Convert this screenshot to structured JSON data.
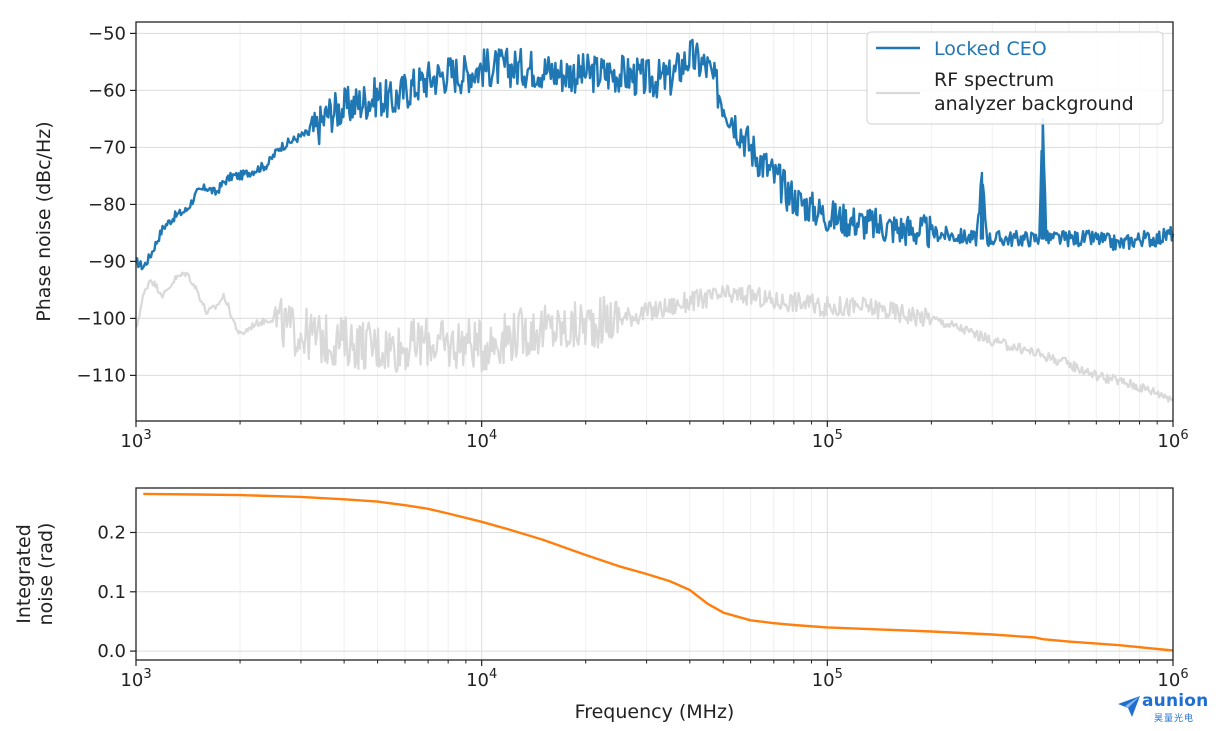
{
  "chart_data": [
    {
      "type": "line",
      "ylabel": "Phase noise (dBc/Hz)",
      "xlabel": "",
      "xscale": "log",
      "xlim": [
        1000,
        1000000
      ],
      "ylim": [
        -118,
        -48
      ],
      "yticks": [
        -50,
        -60,
        -70,
        -80,
        -90,
        -100,
        -110
      ],
      "ytick_labels": [
        "−50",
        "−60",
        "−70",
        "−80",
        "−90",
        "−100",
        "−110"
      ],
      "xtick_labels": [
        {
          "base": "10",
          "exp": "3"
        },
        {
          "base": "10",
          "exp": "4"
        },
        {
          "base": "10",
          "exp": "5"
        },
        {
          "base": "10",
          "exp": "6"
        }
      ],
      "grid": true,
      "legend_position": "top-right",
      "series": [
        {
          "name": "Locked CEO",
          "color": "#1f77b4",
          "x": [
            1000,
            1050,
            1100,
            1200,
            1300,
            1400,
            1500,
            1600,
            1700,
            1800,
            1900,
            2000,
            2200,
            2400,
            2600,
            2800,
            3000,
            3300,
            3600,
            4000,
            4500,
            5000,
            5500,
            6000,
            7000,
            8000,
            9000,
            10000,
            12000,
            14000,
            17000,
            20000,
            25000,
            30000,
            35000,
            40000,
            45000,
            50000,
            60000,
            70000,
            80000,
            100000,
            120000,
            150000,
            200000,
            270000,
            280000,
            290000,
            350000,
            410000,
            420000,
            430000,
            500000,
            600000,
            700000,
            800000,
            900000,
            1000000
          ],
          "y": [
            -90,
            -91,
            -89,
            -84,
            -82,
            -81,
            -78,
            -77,
            -78,
            -76,
            -75,
            -75,
            -74,
            -73,
            -70,
            -69,
            -68,
            -67,
            -64,
            -63,
            -62,
            -61,
            -62,
            -60,
            -58,
            -57,
            -57,
            -56,
            -56,
            -56,
            -57,
            -57,
            -57,
            -58,
            -58,
            -54,
            -56,
            -62,
            -70,
            -75,
            -79,
            -82,
            -83,
            -84,
            -85,
            -86,
            -75,
            -86,
            -86,
            -86,
            -65,
            -86,
            -86,
            -86,
            -87,
            -86,
            -86,
            -85
          ]
        },
        {
          "name": "RF spectrum\nanalyzer background",
          "color": "#d9d9d9",
          "x": [
            1000,
            1050,
            1100,
            1200,
            1300,
            1400,
            1500,
            1600,
            1700,
            1800,
            1900,
            2000,
            2200,
            2500,
            2800,
            3200,
            3600,
            4000,
            5000,
            6000,
            7000,
            8000,
            9000,
            10000,
            12000,
            15000,
            18000,
            20000,
            25000,
            30000,
            35000,
            40000,
            50000,
            60000,
            70000,
            80000,
            100000,
            130000,
            160000,
            200000,
            250000,
            300000,
            400000,
            500000,
            600000,
            700000,
            800000,
            900000,
            1000000
          ],
          "y": [
            -102,
            -96,
            -93,
            -96,
            -93,
            -92,
            -95,
            -99,
            -98,
            -96,
            -100,
            -103,
            -101,
            -100,
            -102,
            -103,
            -104,
            -104,
            -105,
            -105,
            -104,
            -105,
            -104,
            -105,
            -103,
            -102,
            -102,
            -101,
            -100,
            -99,
            -98,
            -97,
            -96,
            -96,
            -97,
            -97,
            -98,
            -98,
            -99,
            -100,
            -102,
            -104,
            -106,
            -108,
            -110,
            -111,
            -112,
            -113,
            -114
          ]
        }
      ]
    },
    {
      "type": "line",
      "ylabel": "Integrated\nnoise (rad)",
      "xlabel": "Frequency (MHz)",
      "xscale": "log",
      "xlim": [
        1000,
        1000000
      ],
      "ylim": [
        -0.015,
        0.275
      ],
      "yticks": [
        0.0,
        0.1,
        0.2
      ],
      "ytick_labels": [
        "0.0",
        "0.1",
        "0.2"
      ],
      "xtick_labels": [
        {
          "base": "10",
          "exp": "3"
        },
        {
          "base": "10",
          "exp": "4"
        },
        {
          "base": "10",
          "exp": "5"
        },
        {
          "base": "10",
          "exp": "6"
        }
      ],
      "grid": true,
      "series": [
        {
          "color": "#ff7f0e",
          "x": [
            1050,
            1500,
            2000,
            3000,
            4000,
            5000,
            6000,
            7000,
            8000,
            10000,
            12000,
            15000,
            20000,
            25000,
            30000,
            35000,
            40000,
            45000,
            50000,
            55000,
            60000,
            70000,
            80000,
            100000,
            150000,
            200000,
            300000,
            400000,
            420000,
            500000,
            700000,
            1000000
          ],
          "y": [
            0.265,
            0.264,
            0.263,
            0.26,
            0.256,
            0.252,
            0.246,
            0.24,
            0.232,
            0.218,
            0.205,
            0.188,
            0.162,
            0.143,
            0.13,
            0.118,
            0.103,
            0.08,
            0.065,
            0.058,
            0.052,
            0.047,
            0.044,
            0.04,
            0.036,
            0.033,
            0.028,
            0.023,
            0.02,
            0.016,
            0.01,
            0.001
          ]
        }
      ]
    }
  ],
  "watermark": {
    "brand": "aunion",
    "subtitle": "昊量光电",
    "color": "#1f6fd1"
  }
}
